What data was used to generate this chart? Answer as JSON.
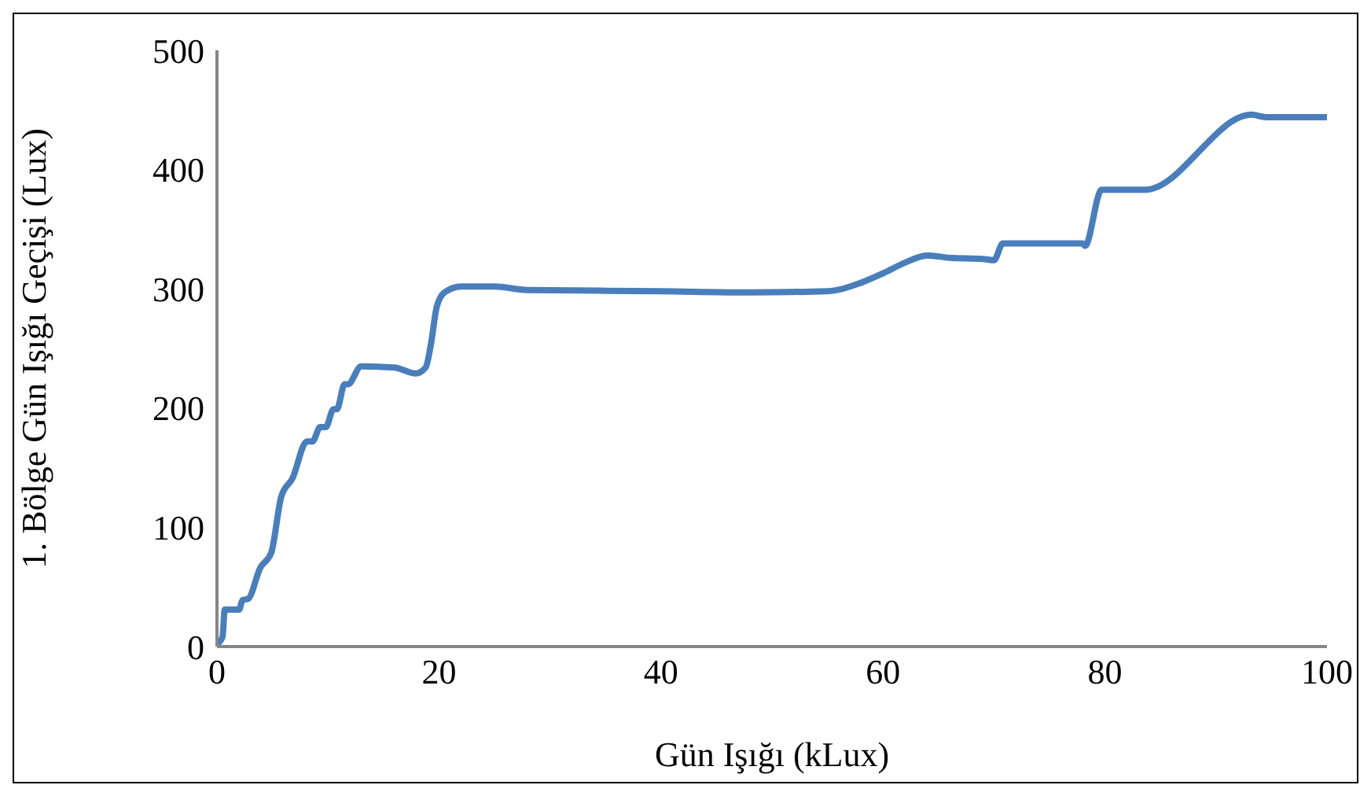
{
  "chart_data": {
    "type": "line",
    "xlabel": "Gün Işığı (kLux)",
    "ylabel": "1. Bölge Gün Işığı Geçişi (Lux)",
    "x": [
      0,
      0.5,
      0.7,
      2,
      2.3,
      2.8,
      3.9,
      4.9,
      5.8,
      6.8,
      8.1,
      8.6,
      9.3,
      9.8,
      10.5,
      10.8,
      11.5,
      11.8,
      13,
      16,
      17.9,
      18.8,
      19.3,
      19.8,
      20.5,
      22,
      25,
      28,
      40,
      48,
      55,
      58,
      60,
      62,
      64,
      66,
      69,
      70,
      70.8,
      78,
      78.2,
      79.7,
      83.6,
      93.2,
      94.5,
      100
    ],
    "series": [
      {
        "color": "#4a7ebb",
        "values": [
          2,
          8,
          31,
          31,
          39,
          40,
          66,
          79,
          126,
          141,
          172,
          172,
          184,
          184,
          199,
          199,
          220,
          220,
          235,
          234,
          229,
          234,
          255,
          285,
          297,
          302,
          302,
          299,
          298,
          297,
          298,
          305,
          313,
          322,
          328,
          326,
          325,
          324,
          338,
          338,
          336,
          383,
          383,
          446,
          444,
          444
        ]
      }
    ],
    "xlim": [
      0,
      100
    ],
    "xticks": [
      0,
      20,
      40,
      60,
      80,
      100
    ],
    "ylim": [
      0,
      500
    ],
    "yticks": [
      0,
      100,
      200,
      300,
      400,
      500
    ],
    "grid": false,
    "legend": false,
    "marker": "none",
    "line_style": "solid"
  }
}
